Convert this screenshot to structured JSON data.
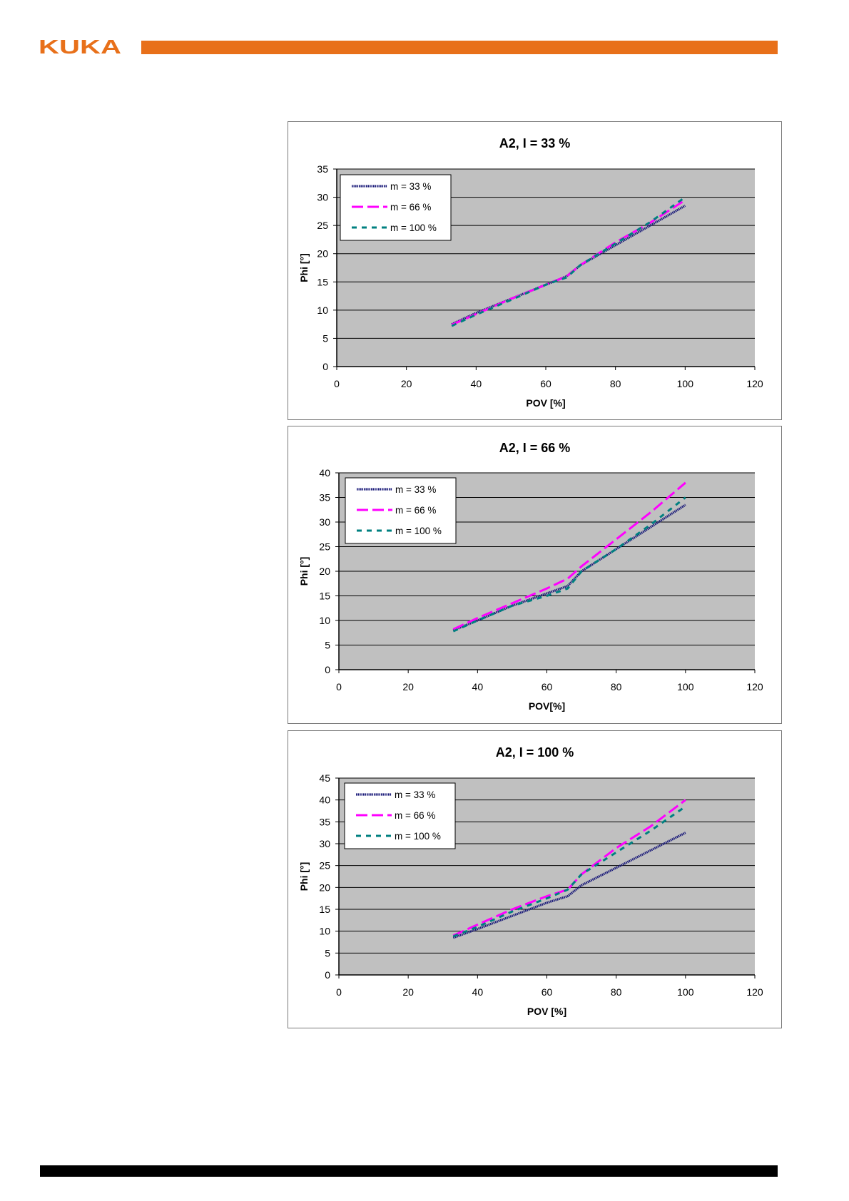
{
  "brand": {
    "logo_text": "KUKA",
    "accent_color": "#e8701a"
  },
  "chart_data": [
    {
      "type": "line",
      "title": "A2,  I = 33 %",
      "xlabel": "POV [%]",
      "ylabel": "Phi [°]",
      "xlim": [
        0,
        120
      ],
      "ylim": [
        0,
        35
      ],
      "xticks": [
        0,
        20,
        40,
        60,
        80,
        100,
        120
      ],
      "yticks": [
        0,
        5,
        10,
        15,
        20,
        25,
        30,
        35
      ],
      "grid": "horizontal",
      "legend_position": "top-left",
      "series": [
        {
          "name": "m = 33 %",
          "color": "#1c1c7a",
          "style": "dotted-thick",
          "x": [
            33,
            40,
            50,
            60,
            66,
            70,
            80,
            90,
            100
          ],
          "y": [
            7.5,
            9.5,
            12,
            14.5,
            16,
            18,
            21.5,
            25,
            28.5
          ]
        },
        {
          "name": "m = 66 %",
          "color": "#ff00ff",
          "style": "long-dash",
          "x": [
            33,
            40,
            50,
            60,
            66,
            70,
            80,
            90,
            100
          ],
          "y": [
            7.4,
            9.3,
            12,
            14.5,
            16,
            18,
            22,
            25.5,
            29.5
          ]
        },
        {
          "name": "m = 100 %",
          "color": "#008080",
          "style": "short-dash",
          "x": [
            33,
            40,
            50,
            60,
            66,
            70,
            80,
            90,
            100
          ],
          "y": [
            7.2,
            9.2,
            11.8,
            14.5,
            15.8,
            18,
            21.8,
            25.6,
            30
          ]
        }
      ]
    },
    {
      "type": "line",
      "title": "A2,  I = 66 %",
      "xlabel": "POV[%]",
      "ylabel": "Phi [°]",
      "xlim": [
        0,
        120
      ],
      "ylim": [
        0,
        40
      ],
      "xticks": [
        0,
        20,
        40,
        60,
        80,
        100,
        120
      ],
      "yticks": [
        0,
        5,
        10,
        15,
        20,
        25,
        30,
        35,
        40
      ],
      "grid": "horizontal",
      "legend_position": "top-left",
      "series": [
        {
          "name": "m = 33 %",
          "color": "#1c1c7a",
          "style": "dotted-thick",
          "x": [
            33,
            40,
            50,
            60,
            66,
            70,
            80,
            90,
            100
          ],
          "y": [
            8,
            10,
            13,
            15.5,
            17,
            20,
            24.5,
            29,
            33.5
          ]
        },
        {
          "name": "m = 66 %",
          "color": "#ff00ff",
          "style": "long-dash",
          "x": [
            33,
            40,
            50,
            60,
            66,
            70,
            80,
            90,
            100
          ],
          "y": [
            8.2,
            10.5,
            13.5,
            16.5,
            18.5,
            21,
            26.5,
            32,
            38
          ]
        },
        {
          "name": "m = 100 %",
          "color": "#008080",
          "style": "short-dash",
          "x": [
            33,
            40,
            50,
            60,
            66,
            70,
            80,
            90,
            100
          ],
          "y": [
            7.8,
            10,
            13,
            15,
            16.5,
            20,
            24.5,
            29.5,
            35
          ]
        }
      ]
    },
    {
      "type": "line",
      "title": "A2,  I = 100 %",
      "xlabel": "POV [%]",
      "ylabel": "Phi [°]",
      "xlim": [
        0,
        120
      ],
      "ylim": [
        0,
        45
      ],
      "xticks": [
        0,
        20,
        40,
        60,
        80,
        100,
        120
      ],
      "yticks": [
        0,
        5,
        10,
        15,
        20,
        25,
        30,
        35,
        40,
        45
      ],
      "grid": "horizontal",
      "legend_position": "top-left",
      "series": [
        {
          "name": "m = 33 %",
          "color": "#1c1c7a",
          "style": "dotted-thick",
          "x": [
            33,
            40,
            50,
            60,
            66,
            70,
            80,
            90,
            100
          ],
          "y": [
            8.5,
            10.5,
            13.5,
            16.5,
            18,
            20.5,
            24.5,
            28.5,
            32.5
          ]
        },
        {
          "name": "m = 66 %",
          "color": "#ff00ff",
          "style": "long-dash",
          "x": [
            33,
            40,
            50,
            60,
            66,
            70,
            80,
            90,
            100
          ],
          "y": [
            9,
            11.5,
            15,
            18,
            19.5,
            23,
            29,
            34,
            40
          ]
        },
        {
          "name": "m = 100 %",
          "color": "#008080",
          "style": "short-dash",
          "x": [
            33,
            40,
            50,
            60,
            66,
            70,
            80,
            90,
            100
          ],
          "y": [
            8.8,
            11,
            14.5,
            17.5,
            19.5,
            23,
            28,
            33,
            38.5
          ]
        }
      ]
    }
  ]
}
